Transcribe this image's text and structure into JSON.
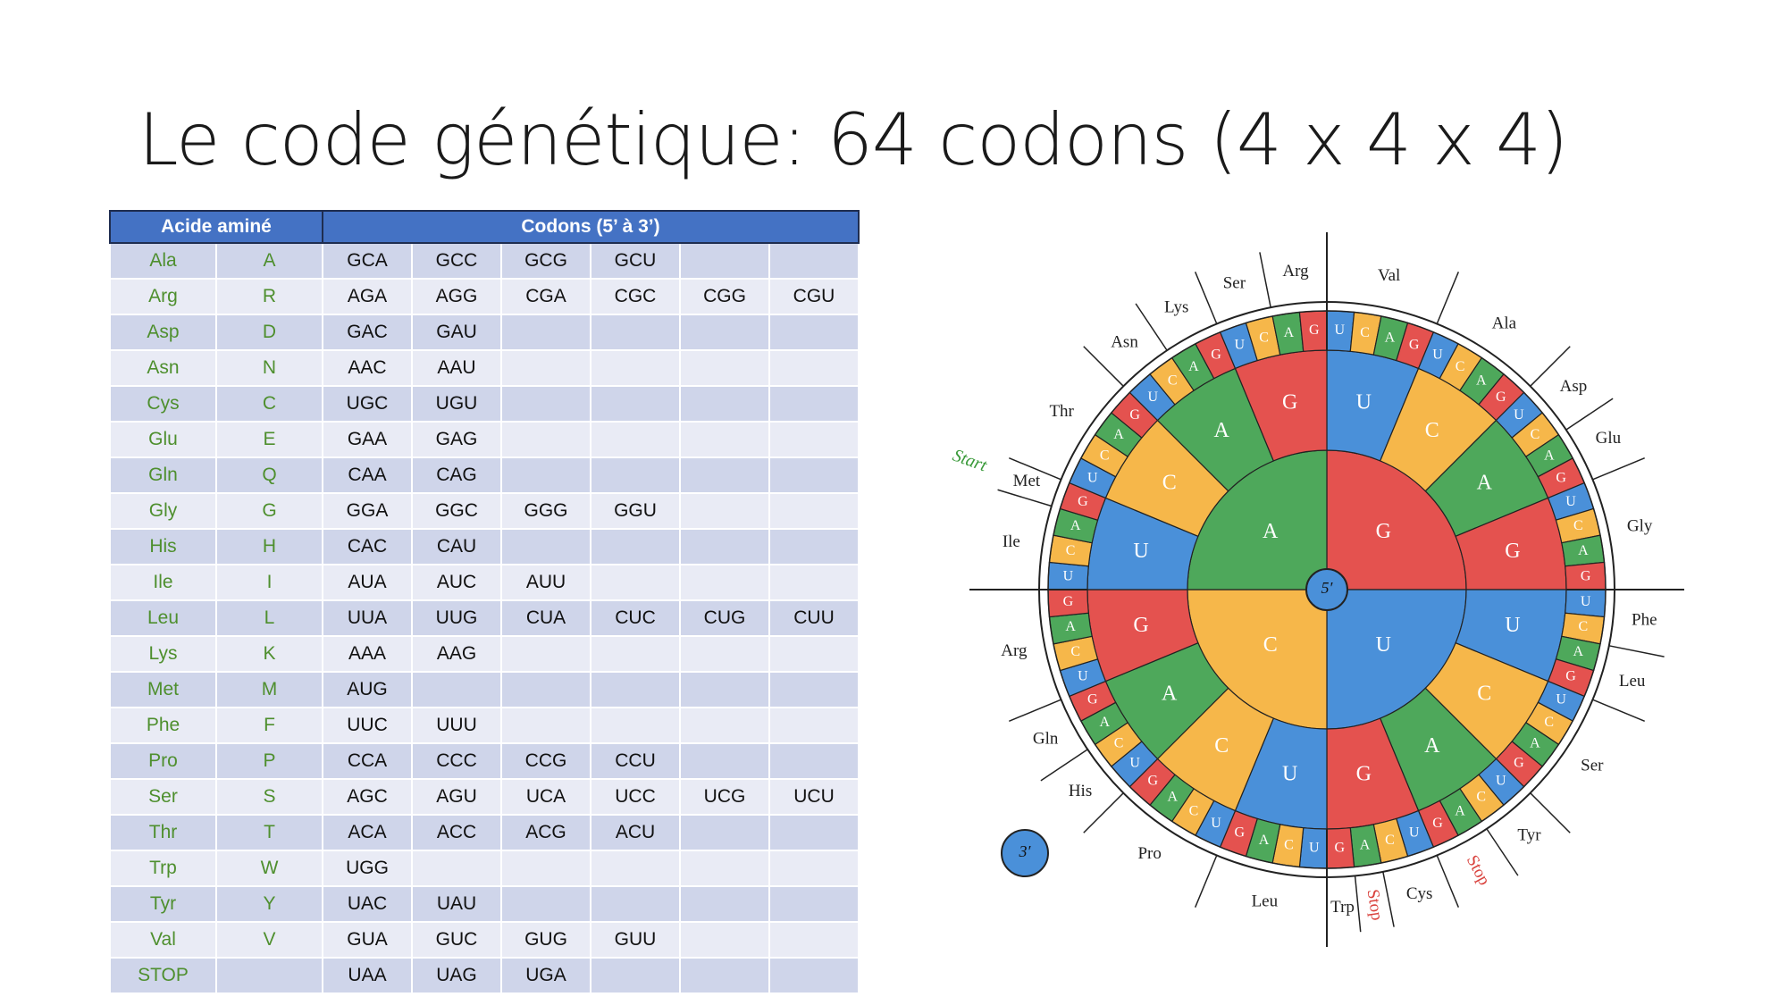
{
  "title": "Le code génétique: 64 codons (4 x 4 x 4)",
  "table": {
    "header": [
      "Acide aminé",
      "Codons (5’ à 3’)"
    ],
    "rows": [
      {
        "name": "Ala",
        "letter": "A",
        "codons": [
          "GCA",
          "GCC",
          "GCG",
          "GCU"
        ]
      },
      {
        "name": "Arg",
        "letter": "R",
        "codons": [
          "AGA",
          "AGG",
          "CGA",
          "CGC",
          "CGG",
          "CGU"
        ]
      },
      {
        "name": "Asp",
        "letter": "D",
        "codons": [
          "GAC",
          "GAU"
        ]
      },
      {
        "name": "Asn",
        "letter": "N",
        "codons": [
          "AAC",
          "AAU"
        ]
      },
      {
        "name": "Cys",
        "letter": "C",
        "codons": [
          "UGC",
          "UGU"
        ]
      },
      {
        "name": "Glu",
        "letter": "E",
        "codons": [
          "GAA",
          "GAG"
        ]
      },
      {
        "name": "Gln",
        "letter": "Q",
        "codons": [
          "CAA",
          "CAG"
        ]
      },
      {
        "name": "Gly",
        "letter": "G",
        "codons": [
          "GGA",
          "GGC",
          "GGG",
          "GGU"
        ]
      },
      {
        "name": "His",
        "letter": "H",
        "codons": [
          "CAC",
          "CAU"
        ]
      },
      {
        "name": "Ile",
        "letter": "I",
        "codons": [
          "AUA",
          "AUC",
          "AUU"
        ]
      },
      {
        "name": "Leu",
        "letter": "L",
        "codons": [
          "UUA",
          "UUG",
          "CUA",
          "CUC",
          "CUG",
          "CUU"
        ]
      },
      {
        "name": "Lys",
        "letter": "K",
        "codons": [
          "AAA",
          "AAG"
        ]
      },
      {
        "name": "Met",
        "letter": "M",
        "codons": [
          "AUG"
        ]
      },
      {
        "name": "Phe",
        "letter": "F",
        "codons": [
          "UUC",
          "UUU"
        ]
      },
      {
        "name": "Pro",
        "letter": "P",
        "codons": [
          "CCA",
          "CCC",
          "CCG",
          "CCU"
        ]
      },
      {
        "name": "Ser",
        "letter": "S",
        "codons": [
          "AGC",
          "AGU",
          "UCA",
          "UCC",
          "UCG",
          "UCU"
        ]
      },
      {
        "name": "Thr",
        "letter": "T",
        "codons": [
          "ACA",
          "ACC",
          "ACG",
          "ACU"
        ]
      },
      {
        "name": "Trp",
        "letter": "W",
        "codons": [
          "UGG"
        ]
      },
      {
        "name": "Tyr",
        "letter": "Y",
        "codons": [
          "UAC",
          "UAU"
        ]
      },
      {
        "name": "Val",
        "letter": "V",
        "codons": [
          "GUA",
          "GUC",
          "GUG",
          "GUU"
        ]
      },
      {
        "name": "STOP",
        "codons": [
          "UAA",
          "UAG",
          "UGA"
        ]
      }
    ]
  },
  "wheel": {
    "center": "5′",
    "end": "3′",
    "colors": {
      "U": "#4a90d9",
      "C": "#f6b74a",
      "A": "#4ea85b",
      "G": "#e4524f"
    },
    "inner": [
      "G",
      "U",
      "C",
      "A"
    ],
    "middle": [
      "U",
      "C",
      "A",
      "G"
    ],
    "outer": [
      "U",
      "C",
      "A",
      "G"
    ],
    "amino_acids": [
      {
        "label": "Val",
        "size": 4
      },
      {
        "label": "Ala",
        "size": 4
      },
      {
        "label": "Asp",
        "size": 2
      },
      {
        "label": "Glu",
        "size": 2
      },
      {
        "label": "Gly",
        "size": 4
      },
      {
        "label": "Phe",
        "size": 2
      },
      {
        "label": "Leu",
        "size": 2
      },
      {
        "label": "Ser",
        "size": 4
      },
      {
        "label": "Tyr",
        "size": 2
      },
      {
        "label": "Stop",
        "size": 2,
        "color": "#d9413c"
      },
      {
        "label": "Cys",
        "size": 2
      },
      {
        "label": "Stop",
        "size": 1,
        "color": "#d9413c"
      },
      {
        "label": "Trp",
        "size": 1
      },
      {
        "label": "Leu",
        "size": 4
      },
      {
        "label": "Pro",
        "size": 4
      },
      {
        "label": "His",
        "size": 2
      },
      {
        "label": "Gln",
        "size": 2
      },
      {
        "label": "Arg",
        "size": 4
      },
      {
        "label": "Ile",
        "size": 3
      },
      {
        "label": "Met",
        "size": 1,
        "note": "Start",
        "note_color": "#3a9a3a"
      },
      {
        "label": "Thr",
        "size": 4
      },
      {
        "label": "Asn",
        "size": 2
      },
      {
        "label": "Lys",
        "size": 2
      },
      {
        "label": "Ser",
        "size": 2
      },
      {
        "label": "Arg",
        "size": 2
      }
    ]
  }
}
